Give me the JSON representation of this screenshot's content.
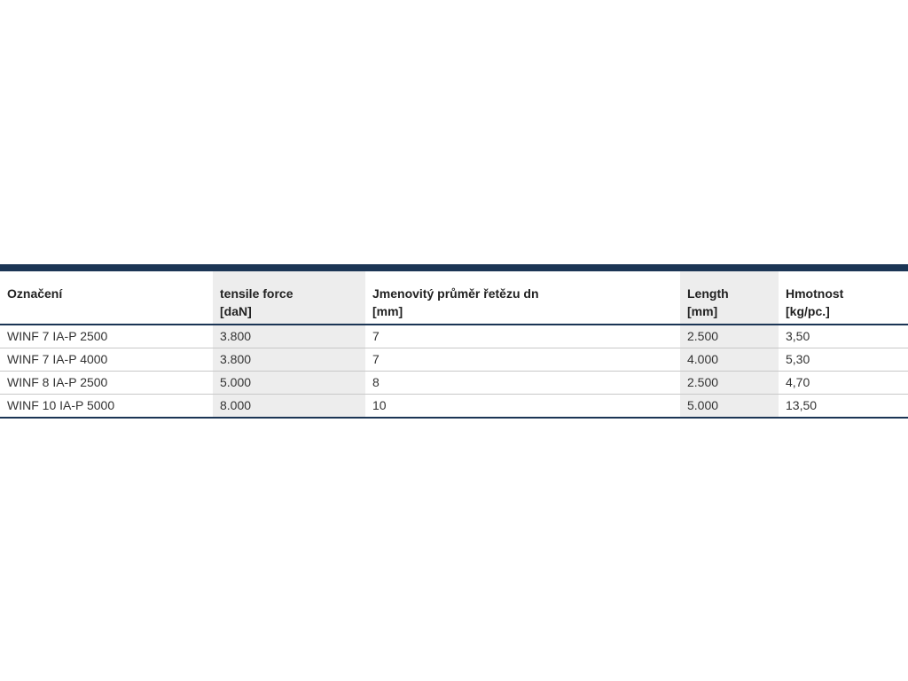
{
  "colors": {
    "accent": "#1b3555",
    "shaded_column": "#ededed"
  },
  "table": {
    "headers": [
      {
        "line1": "Označení",
        "line2": ""
      },
      {
        "line1": "tensile force",
        "line2": "[daN]"
      },
      {
        "line1": "Jmenovitý průměr řetězu dn",
        "line2": "[mm]"
      },
      {
        "line1": "Length",
        "line2": "[mm]"
      },
      {
        "line1": "Hmotnost",
        "line2": "[kg/pc.]"
      }
    ],
    "rows": [
      [
        "WINF 7 IA-P 2500",
        "3.800",
        "7",
        "2.500",
        "3,50"
      ],
      [
        "WINF 7 IA-P 4000",
        "3.800",
        "7",
        "4.000",
        "5,30"
      ],
      [
        "WINF 8 IA-P 2500",
        "5.000",
        "8",
        "2.500",
        "4,70"
      ],
      [
        "WINF 10 IA-P 5000",
        "8.000",
        "10",
        "5.000",
        "13,50"
      ]
    ]
  }
}
